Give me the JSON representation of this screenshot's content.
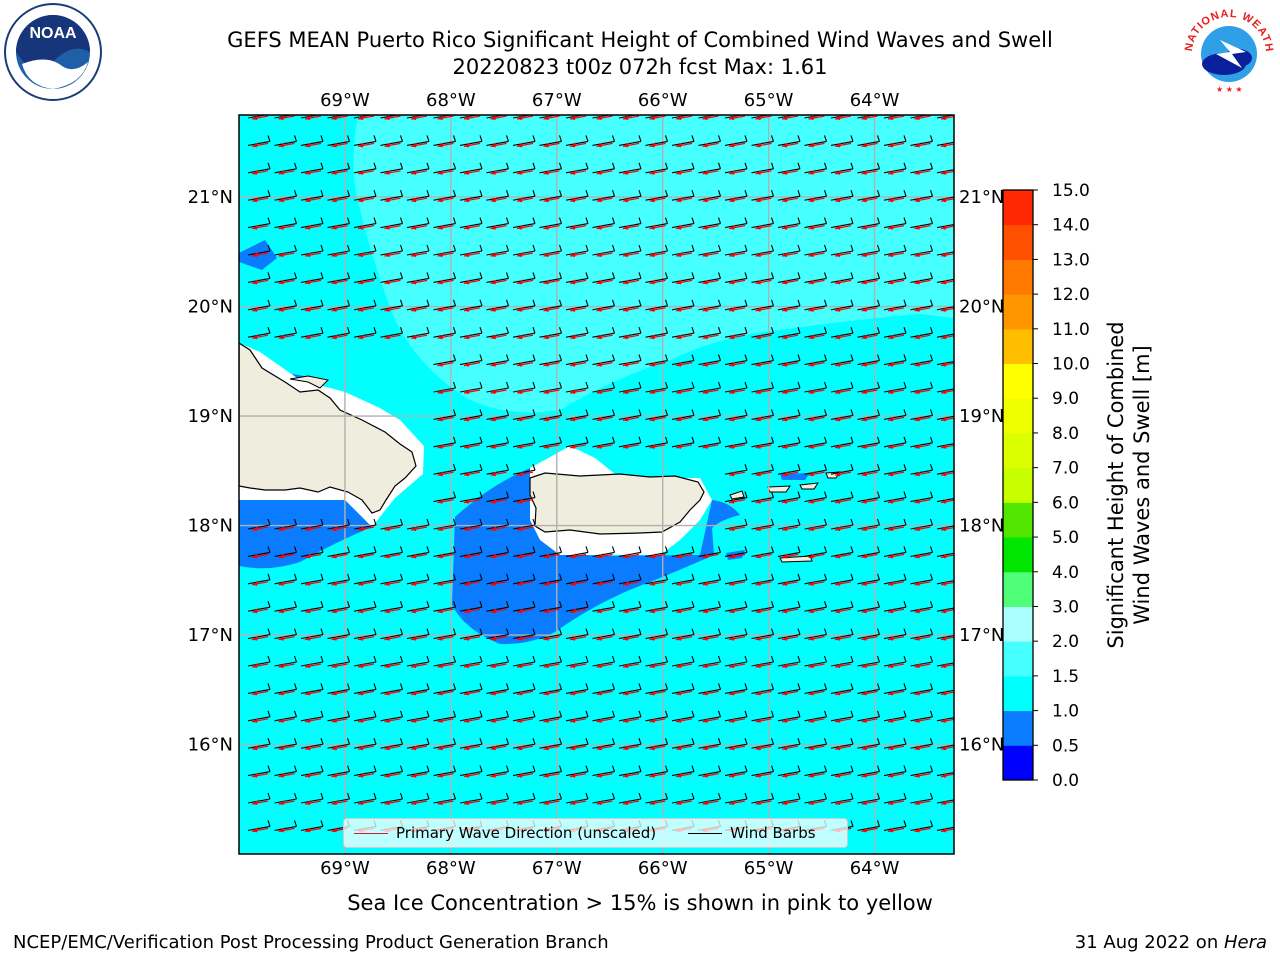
{
  "header": {
    "title_line1": "GEFS MEAN Puerto Rico Significant Height of Combined Wind Waves and Swell",
    "title_line2": "20220823 t00z 072h fcst   Max: 1.61"
  },
  "logos": {
    "left": {
      "name": "noaa-logo",
      "text": "NOAA",
      "ring_text": "NATIONAL OCEANIC AND ATMOSPHERIC ADMINISTRATION · U.S. DEPARTMENT OF COMMERCE"
    },
    "right": {
      "name": "nws-logo",
      "ring_text": "NATIONAL WEATHER SERVICE"
    }
  },
  "map": {
    "lon_range": [
      -70.0,
      -63.25
    ],
    "lat_range": [
      15.0,
      21.75
    ],
    "lon_ticks": [
      "69°W",
      "68°W",
      "67°W",
      "66°W",
      "65°W",
      "64°W"
    ],
    "lon_values": [
      -69,
      -68,
      -67,
      -66,
      -65,
      -64
    ],
    "lat_ticks": [
      "21°N",
      "20°N",
      "19°N",
      "18°N",
      "17°N",
      "16°N"
    ],
    "lat_values": [
      21,
      20,
      19,
      18,
      17,
      16
    ],
    "grid": true,
    "land_color": "#efedde",
    "ice_free_color": "#ffffff",
    "arrow_color": "#ff0000",
    "barb_color": "#000000",
    "legend": {
      "placement": "lower-center",
      "entries": [
        "Primary Wave Direction (unscaled)",
        "Wind Barbs"
      ]
    }
  },
  "colorbar": {
    "label_line1": "Significant Height of Combined",
    "label_line2": "Wind Waves and Swell [m]",
    "levels": [
      "0.0",
      "0.5",
      "1.0",
      "1.5",
      "2.0",
      "3.0",
      "4.0",
      "5.0",
      "6.0",
      "7.0",
      "8.0",
      "9.0",
      "10.0",
      "11.0",
      "12.0",
      "13.0",
      "14.0",
      "15.0"
    ],
    "colors": [
      "#0000ff",
      "#0a7cff",
      "#00ffff",
      "#46ffff",
      "#aaffff",
      "#50ff78",
      "#00e600",
      "#50e600",
      "#c8ff00",
      "#dcff00",
      "#f0ff00",
      "#ffff00",
      "#ffbe00",
      "#ff9600",
      "#ff7800",
      "#ff5000",
      "#ff2800"
    ]
  },
  "caption": "Sea Ice Concentration > 15% is shown in pink to yellow",
  "footer": {
    "left": "NCEP/EMC/Verification Post Processing Product Generation Branch",
    "right_prefix": "31 Aug 2022 on ",
    "right_host": "Hera"
  }
}
